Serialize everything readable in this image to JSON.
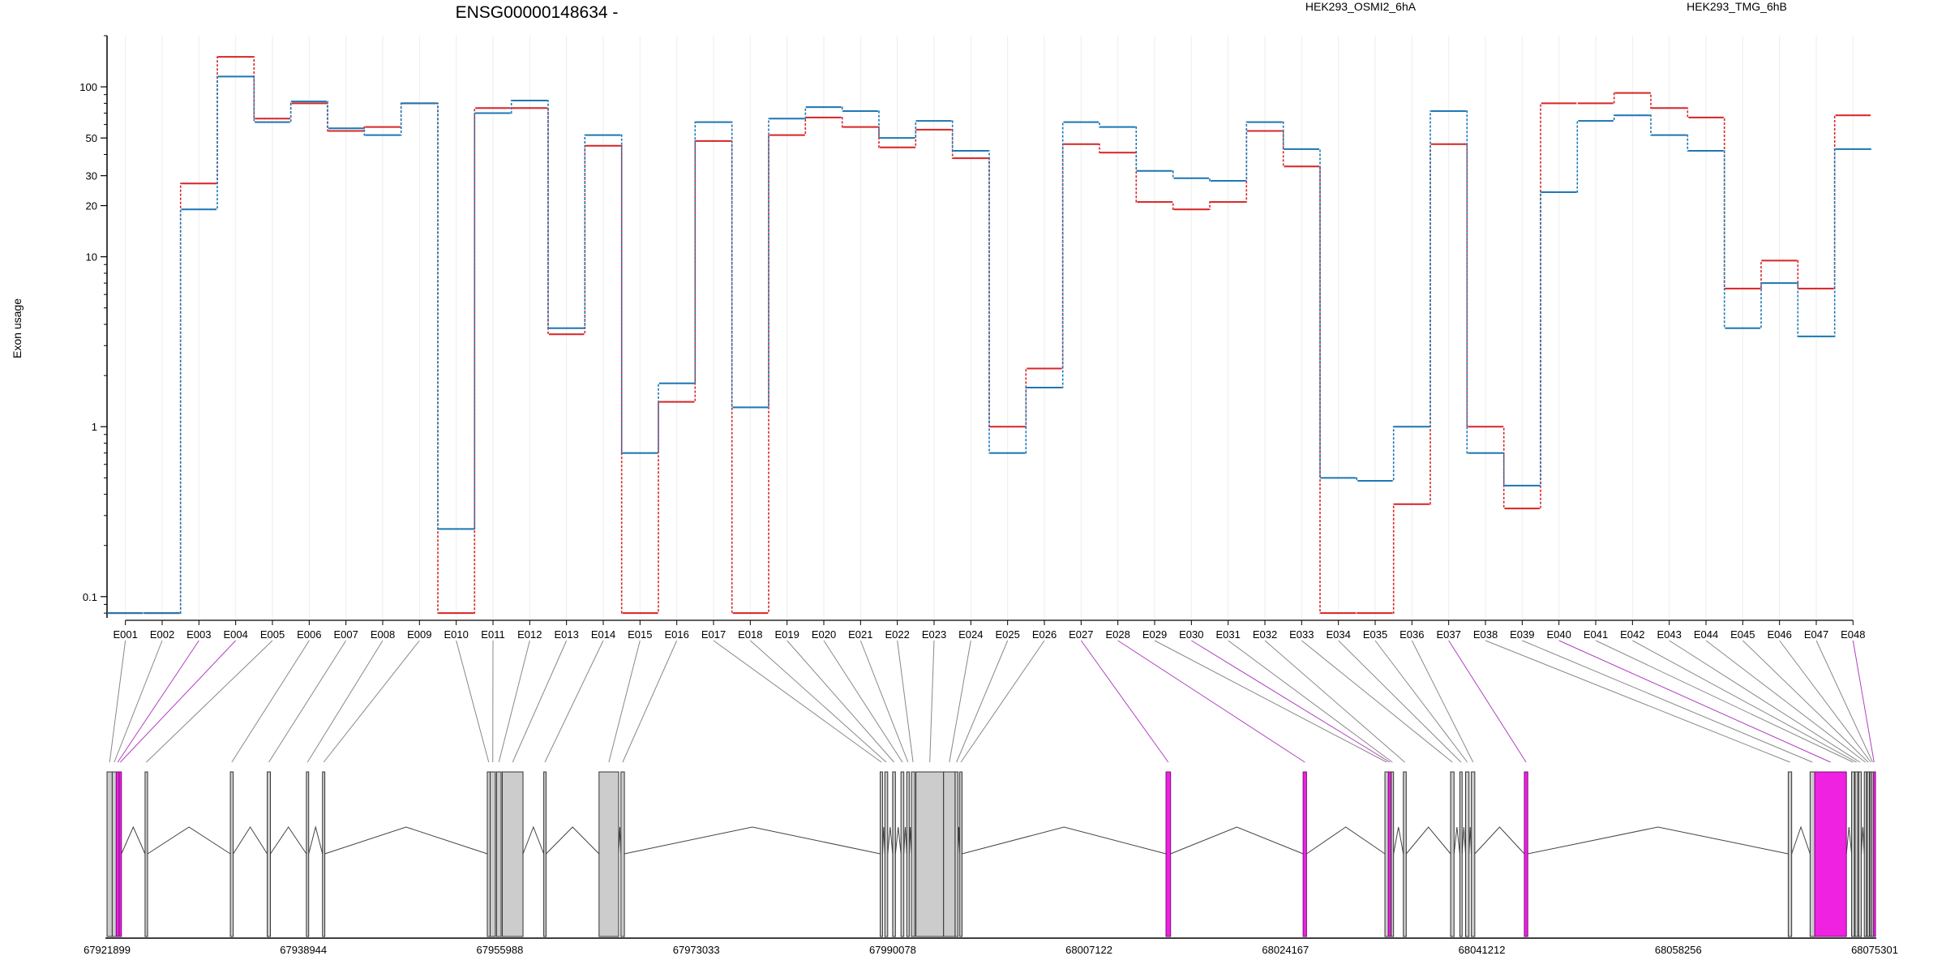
{
  "chart_data": {
    "type": "line",
    "title": "ENSG00000148634 -",
    "ylabel": "Exon usage",
    "xlabel": "",
    "y_scale": "log",
    "y_ticks": [
      0.1,
      1,
      10,
      20,
      30,
      50,
      100
    ],
    "y_tick_labels": [
      "0.1",
      "1",
      "10",
      "20",
      "30",
      "50",
      "100"
    ],
    "categories": [
      "E001",
      "E002",
      "E003",
      "E004",
      "E005",
      "E006",
      "E007",
      "E008",
      "E009",
      "E010",
      "E011",
      "E012",
      "E013",
      "E014",
      "E015",
      "E016",
      "E017",
      "E018",
      "E019",
      "E020",
      "E021",
      "E022",
      "E023",
      "E024",
      "E025",
      "E026",
      "E027",
      "E028",
      "E029",
      "E030",
      "E031",
      "E032",
      "E033",
      "E034",
      "E035",
      "E036",
      "E037",
      "E038",
      "E039",
      "E040",
      "E041",
      "E042",
      "E043",
      "E044",
      "E045",
      "E046",
      "E047",
      "E048"
    ],
    "series": [
      {
        "name": "HEK293_OSMI2_6hA",
        "color": "#d62728",
        "values": [
          0.08,
          0.08,
          27,
          150,
          65,
          80,
          55,
          58,
          80,
          0.08,
          75,
          75,
          3.5,
          45,
          0.08,
          1.4,
          48,
          0.08,
          52,
          66,
          58,
          44,
          56,
          38,
          1.0,
          2.2,
          46,
          41,
          21,
          19,
          21,
          55,
          34,
          0.08,
          0.08,
          0.35,
          46,
          1.0,
          0.33,
          80,
          80,
          92,
          75,
          66,
          6.5,
          9.5,
          6.5,
          68
        ]
      },
      {
        "name": "HEK293_TMG_6hB",
        "color": "#1f77b4",
        "values": [
          0.08,
          0.08,
          19,
          115,
          62,
          82,
          57,
          52,
          80,
          0.25,
          70,
          83,
          3.8,
          52,
          0.7,
          1.8,
          62,
          1.3,
          65,
          76,
          72,
          50,
          63,
          42,
          0.7,
          1.7,
          62,
          58,
          32,
          29,
          28,
          62,
          43,
          0.5,
          0.48,
          1.0,
          72,
          0.7,
          0.45,
          24,
          63,
          68,
          52,
          42,
          3.8,
          7.0,
          3.4,
          43
        ]
      }
    ],
    "gene_model": {
      "coordinate_ticks": [
        "67921899",
        "67938944",
        "67955988",
        "67973033",
        "67990078",
        "68007122",
        "68024167",
        "68041212",
        "68058256",
        "68075301"
      ],
      "highlight_color": "#ee22e0",
      "intron_color": "#444444",
      "exon_fill": "#cccccc",
      "exons": [
        {
          "id": "E001",
          "start": 67921899,
          "end": 67922350
        },
        {
          "id": "E002",
          "start": 67922350,
          "end": 67922700
        },
        {
          "id": "E003",
          "start": 67922700,
          "end": 67922950,
          "highlight": true
        },
        {
          "id": "E004",
          "start": 67922950,
          "end": 67923150,
          "highlight": true
        },
        {
          "id": "E005",
          "start": 67925200,
          "end": 67925420
        },
        {
          "id": "E006",
          "start": 67932600,
          "end": 67932850
        },
        {
          "id": "E007",
          "start": 67935800,
          "end": 67936080
        },
        {
          "id": "E008",
          "start": 67939200,
          "end": 67939400
        },
        {
          "id": "E009",
          "start": 67940600,
          "end": 67940800
        },
        {
          "id": "E010",
          "start": 67954900,
          "end": 67955150
        },
        {
          "id": "E011",
          "start": 67955150,
          "end": 67955600
        },
        {
          "id": "E012",
          "start": 67955700,
          "end": 67956100
        },
        {
          "id": "E013",
          "start": 67956200,
          "end": 67958000
        },
        {
          "id": "E014",
          "start": 67959800,
          "end": 67960000
        },
        {
          "id": "E015",
          "start": 67964600,
          "end": 67966300
        },
        {
          "id": "E016",
          "start": 67966500,
          "end": 67966800
        },
        {
          "id": "E017",
          "start": 67989000,
          "end": 67989200
        },
        {
          "id": "E018",
          "start": 67989400,
          "end": 67989650
        },
        {
          "id": "E019",
          "start": 67990078,
          "end": 67990320
        },
        {
          "id": "E020",
          "start": 67990800,
          "end": 67991050
        },
        {
          "id": "E021",
          "start": 67991300,
          "end": 67991520
        },
        {
          "id": "E022",
          "start": 67991700,
          "end": 67992000
        },
        {
          "id": "E023",
          "start": 67992100,
          "end": 67994500
        },
        {
          "id": "E024",
          "start": 67994500,
          "end": 67995500
        },
        {
          "id": "E025",
          "start": 67995500,
          "end": 67995750
        },
        {
          "id": "E026",
          "start": 67995900,
          "end": 67996100
        },
        {
          "id": "E027",
          "start": 68013800,
          "end": 68014200,
          "highlight": true
        },
        {
          "id": "E028",
          "start": 68025700,
          "end": 68026000,
          "highlight": true
        },
        {
          "id": "E029",
          "start": 68032800,
          "end": 68033100
        },
        {
          "id": "E030",
          "start": 68033100,
          "end": 68033350,
          "highlight": true
        },
        {
          "id": "E031",
          "start": 68033350,
          "end": 68033550
        },
        {
          "id": "E032",
          "start": 68034400,
          "end": 68034650
        },
        {
          "id": "E033",
          "start": 68038500,
          "end": 68038800
        },
        {
          "id": "E034",
          "start": 68039300,
          "end": 68039500
        },
        {
          "id": "E035",
          "start": 68039800,
          "end": 68040100
        },
        {
          "id": "E036",
          "start": 68040300,
          "end": 68040600
        },
        {
          "id": "E037",
          "start": 68044900,
          "end": 68045200,
          "highlight": true
        },
        {
          "id": "E038",
          "start": 68067800,
          "end": 68068100
        },
        {
          "id": "E039",
          "start": 68069700,
          "end": 68070100
        },
        {
          "id": "E040",
          "start": 68070100,
          "end": 68072850,
          "highlight": true
        },
        {
          "id": "E041",
          "start": 68073300,
          "end": 68073550
        },
        {
          "id": "E042",
          "start": 68073600,
          "end": 68073850
        },
        {
          "id": "E043",
          "start": 68073900,
          "end": 68074150
        },
        {
          "id": "E044",
          "start": 68074400,
          "end": 68074600
        },
        {
          "id": "E045",
          "start": 68074650,
          "end": 68074850
        },
        {
          "id": "E046",
          "start": 68074900,
          "end": 68075050
        },
        {
          "id": "E047",
          "start": 68075050,
          "end": 68075200
        },
        {
          "id": "E048",
          "start": 68075200,
          "end": 68075301,
          "highlight": true
        }
      ]
    }
  }
}
